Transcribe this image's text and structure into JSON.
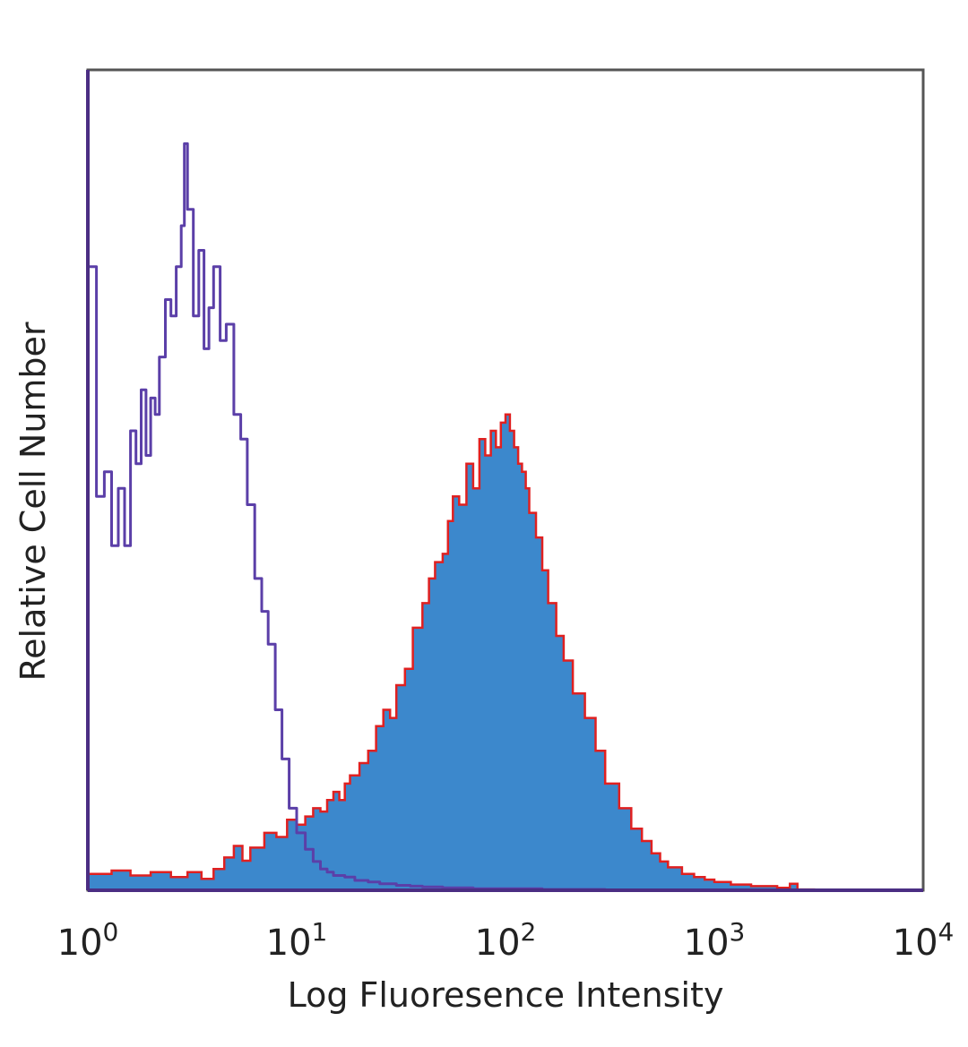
{
  "chart_data": {
    "type": "area",
    "title": "",
    "xlabel": "Log Fluoresence Intensity",
    "ylabel": "Relative Cell Number",
    "x_scale": "log",
    "xlim": [
      1,
      10000
    ],
    "ylim": [
      0,
      100
    ],
    "grid": false,
    "legend": "none",
    "x_ticks": [
      {
        "base": "10",
        "exp": "0",
        "value": 1
      },
      {
        "base": "10",
        "exp": "1",
        "value": 10
      },
      {
        "base": "10",
        "exp": "2",
        "value": 100
      },
      {
        "base": "10",
        "exp": "3",
        "value": 1000
      },
      {
        "base": "10",
        "exp": "4",
        "value": 10000
      }
    ],
    "series": [
      {
        "style": "outline",
        "color": "#5b3fa8",
        "x": [
          1.0,
          1.1,
          1.2,
          1.3,
          1.4,
          1.5,
          1.6,
          1.7,
          1.8,
          1.9,
          2.0,
          2.1,
          2.2,
          2.35,
          2.5,
          2.65,
          2.8,
          2.9,
          3.0,
          3.2,
          3.4,
          3.6,
          3.8,
          4.0,
          4.3,
          4.6,
          5.0,
          5.4,
          5.8,
          6.3,
          6.8,
          7.3,
          7.9,
          8.5,
          9.2,
          10.0,
          11,
          12,
          13,
          14,
          15,
          17,
          19,
          22,
          25,
          30,
          35,
          40,
          50,
          70,
          100,
          150,
          300,
          1000,
          10000
        ],
        "values": [
          76,
          48,
          51,
          42,
          49,
          42,
          56,
          52,
          61,
          53,
          60,
          58,
          65,
          72,
          70,
          76,
          81,
          91,
          83,
          70,
          78,
          66,
          71,
          76,
          67,
          69,
          58,
          55,
          47,
          38,
          34,
          30,
          22,
          16,
          10,
          7,
          5,
          3.5,
          2.6,
          2.2,
          1.8,
          1.6,
          1.2,
          1.0,
          0.8,
          0.6,
          0.5,
          0.4,
          0.3,
          0.2,
          0.2,
          0.1,
          0,
          0,
          0
        ]
      },
      {
        "style": "filled",
        "color": "#3c88cc",
        "edge_color": "#e02020",
        "x": [
          1.0,
          1.3,
          1.6,
          2.0,
          2.5,
          3.0,
          3.5,
          4.0,
          4.5,
          5.0,
          5.5,
          6.0,
          7.0,
          8.0,
          9.0,
          10.0,
          11,
          12,
          13,
          14,
          15,
          16,
          17,
          18,
          20,
          22,
          24,
          26,
          28,
          30,
          33,
          36,
          40,
          43,
          46,
          50,
          53,
          56,
          60,
          65,
          70,
          75,
          80,
          85,
          90,
          95,
          100,
          105,
          110,
          115,
          120,
          125,
          130,
          140,
          150,
          160,
          175,
          190,
          210,
          240,
          270,
          300,
          350,
          400,
          450,
          500,
          550,
          600,
          700,
          800,
          900,
          1000,
          1200,
          1500,
          2000,
          2300,
          2500,
          3000,
          4000,
          10000
        ],
        "values": [
          2,
          2.4,
          1.8,
          2.2,
          1.6,
          2.2,
          1.4,
          2.6,
          4,
          5.4,
          3.6,
          5.2,
          7,
          6.5,
          8.6,
          8,
          9,
          10,
          9.6,
          11,
          12,
          11,
          13,
          14,
          15.5,
          17,
          20,
          22,
          21,
          25,
          27,
          32,
          35,
          38,
          40,
          41,
          45,
          48,
          47,
          52,
          49,
          55,
          53,
          56,
          54,
          57,
          58,
          56,
          54,
          52,
          51,
          49,
          46,
          43,
          39,
          35,
          31,
          28,
          24,
          21,
          17,
          13,
          10,
          7.5,
          6,
          4.5,
          3.5,
          2.8,
          2,
          1.6,
          1.3,
          1,
          0.7,
          0.5,
          0.3,
          0.8,
          0.1,
          0,
          0,
          0
        ]
      }
    ]
  }
}
